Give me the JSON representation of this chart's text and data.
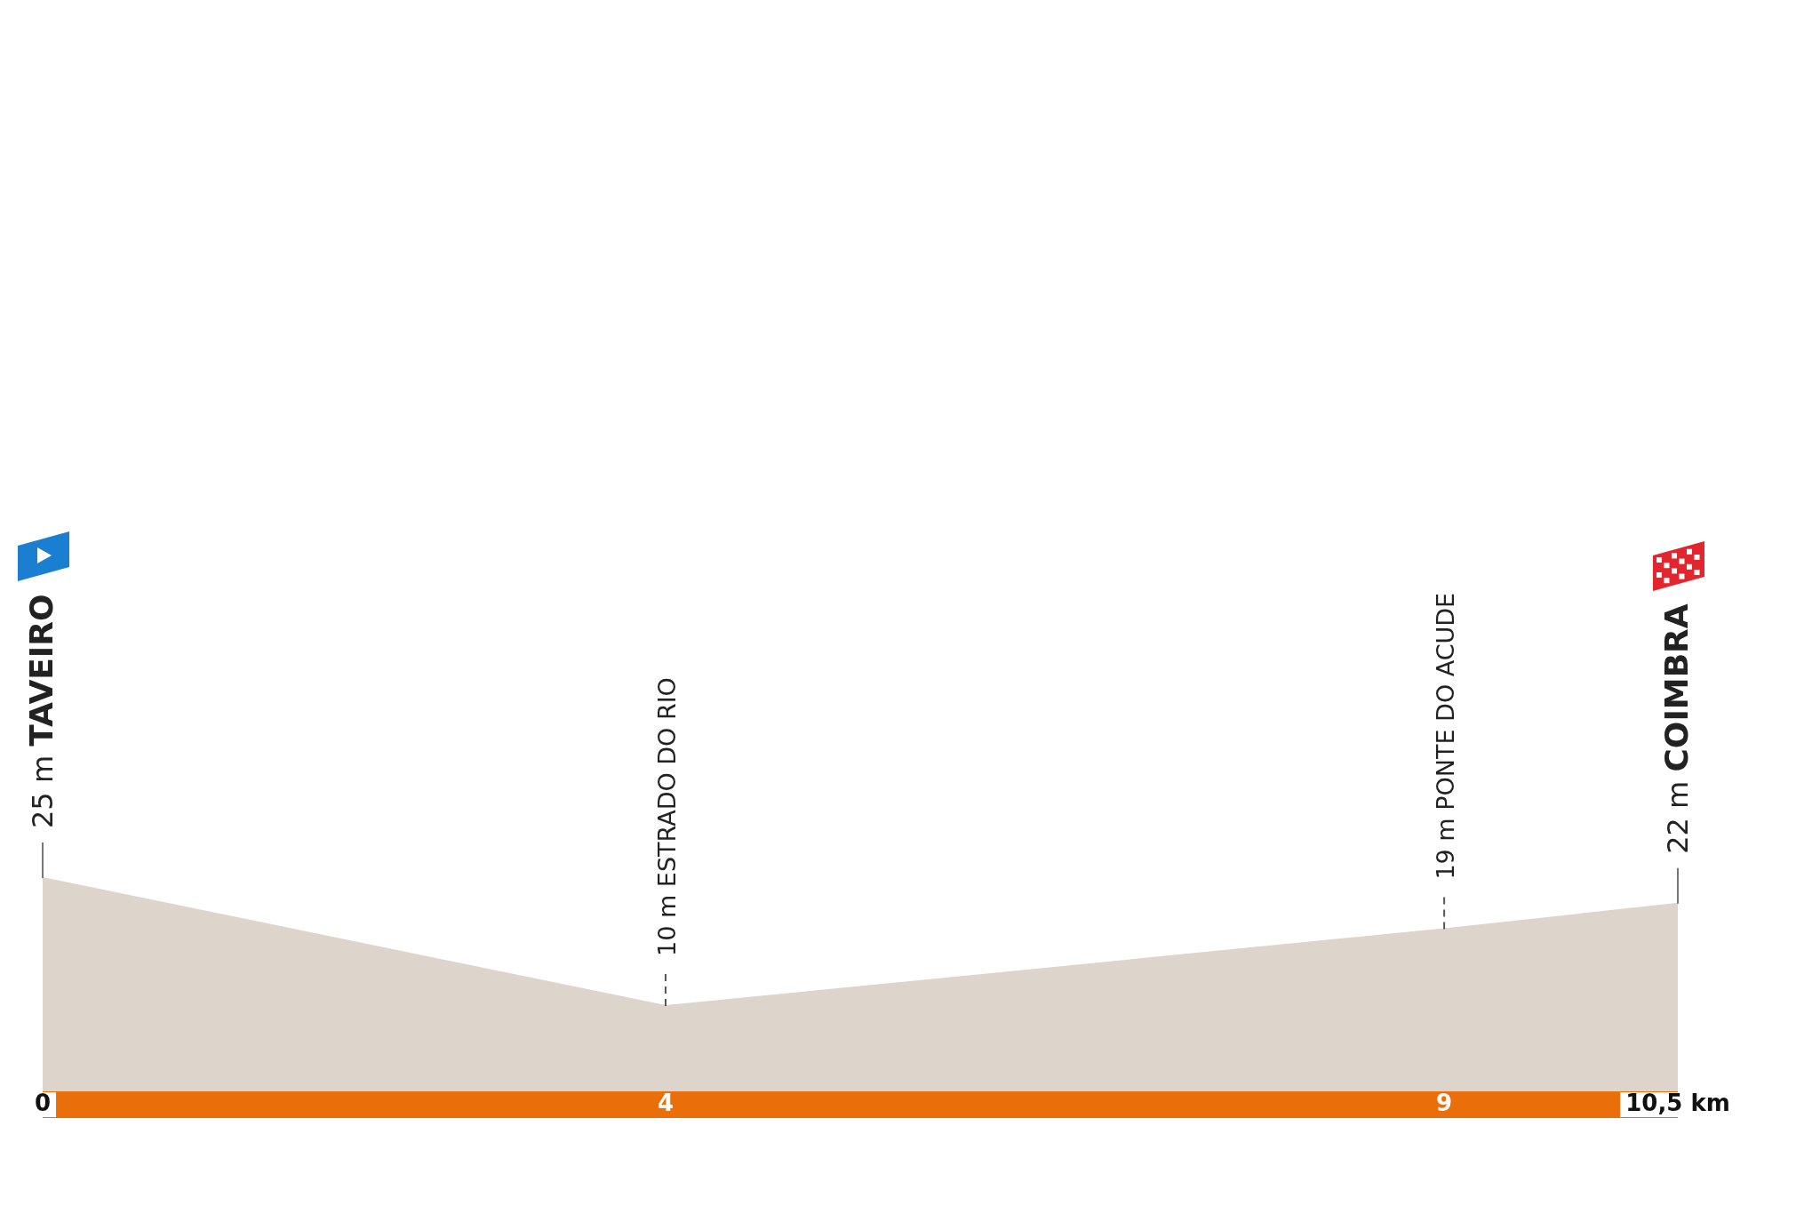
{
  "chart_data": {
    "type": "area",
    "x": [
      0,
      4,
      9,
      10.5
    ],
    "values": [
      25,
      10,
      19,
      22
    ],
    "value_labels": [
      "25 m TAVEIRO",
      "10 m ESTRADO DO RIO",
      "19 m PONTE DO ACUDE",
      "22 m COIMBRA"
    ],
    "color": "#ddd5cc",
    "xlim": [
      0,
      10.5
    ],
    "xticks": [
      0,
      4,
      9,
      {
        "value": 10.5,
        "label": "10,5 km"
      }
    ],
    "grid": false,
    "legend": false
  }
}
